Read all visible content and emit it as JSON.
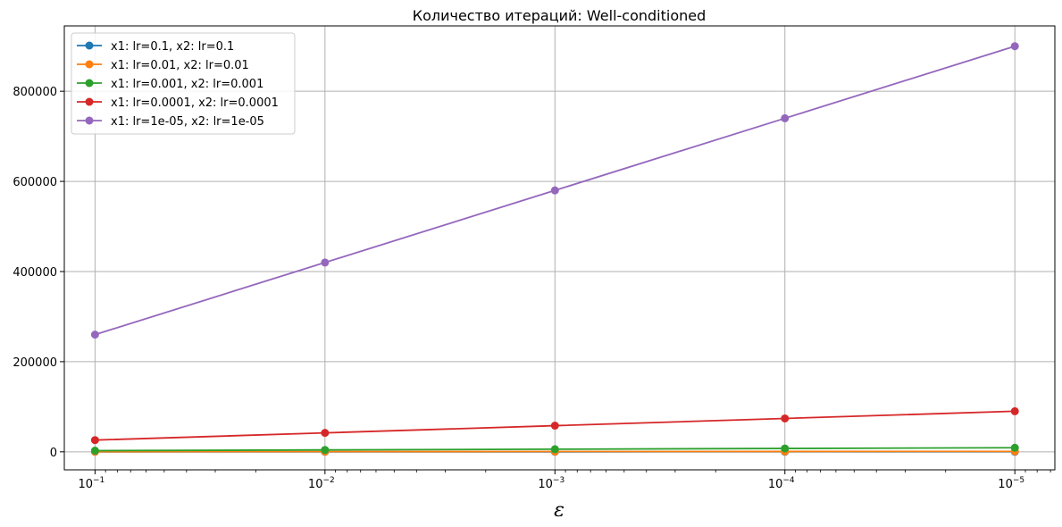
{
  "chart_data": {
    "type": "line",
    "title": "Количество итераций: Well-conditioned",
    "xlabel": "ε",
    "ylabel": "",
    "x_scale": "log",
    "x_inverted": true,
    "x": [
      0.1,
      0.01,
      0.001,
      0.0001,
      1e-05
    ],
    "x_tick_labels": [
      {
        "base": "10",
        "exp": "−1"
      },
      {
        "base": "10",
        "exp": "−2"
      },
      {
        "base": "10",
        "exp": "−3"
      },
      {
        "base": "10",
        "exp": "−4"
      },
      {
        "base": "10",
        "exp": "−5"
      }
    ],
    "xlim": [
      0.136,
      6.7e-06
    ],
    "ylim": [
      -40000,
      945000
    ],
    "y_ticks": [
      0,
      200000,
      400000,
      600000,
      800000
    ],
    "y_tick_labels": [
      "0",
      "200000",
      "400000",
      "600000",
      "800000"
    ],
    "grid": true,
    "legend_position": "top-left",
    "series": [
      {
        "name": "x1: lr=0.1, x2: lr=0.1",
        "color": "#1f77b4",
        "values": [
          26,
          42,
          58,
          74,
          90
        ]
      },
      {
        "name": "x1: lr=0.01, x2: lr=0.01",
        "color": "#ff7f0e",
        "values": [
          260,
          420,
          580,
          740,
          900
        ]
      },
      {
        "name": "x1: lr=0.001, x2: lr=0.001",
        "color": "#2ca02c",
        "values": [
          2600,
          4200,
          5800,
          7400,
          9000
        ]
      },
      {
        "name": "x1: lr=0.0001, x2: lr=0.0001",
        "color": "#d62728",
        "values": [
          26000,
          42000,
          58000,
          74000,
          90000
        ]
      },
      {
        "name": "x1: lr=1e-05, x2: lr=1e-05",
        "color": "#9467bd",
        "values": [
          260000,
          420000,
          580000,
          740000,
          900000
        ]
      }
    ]
  }
}
